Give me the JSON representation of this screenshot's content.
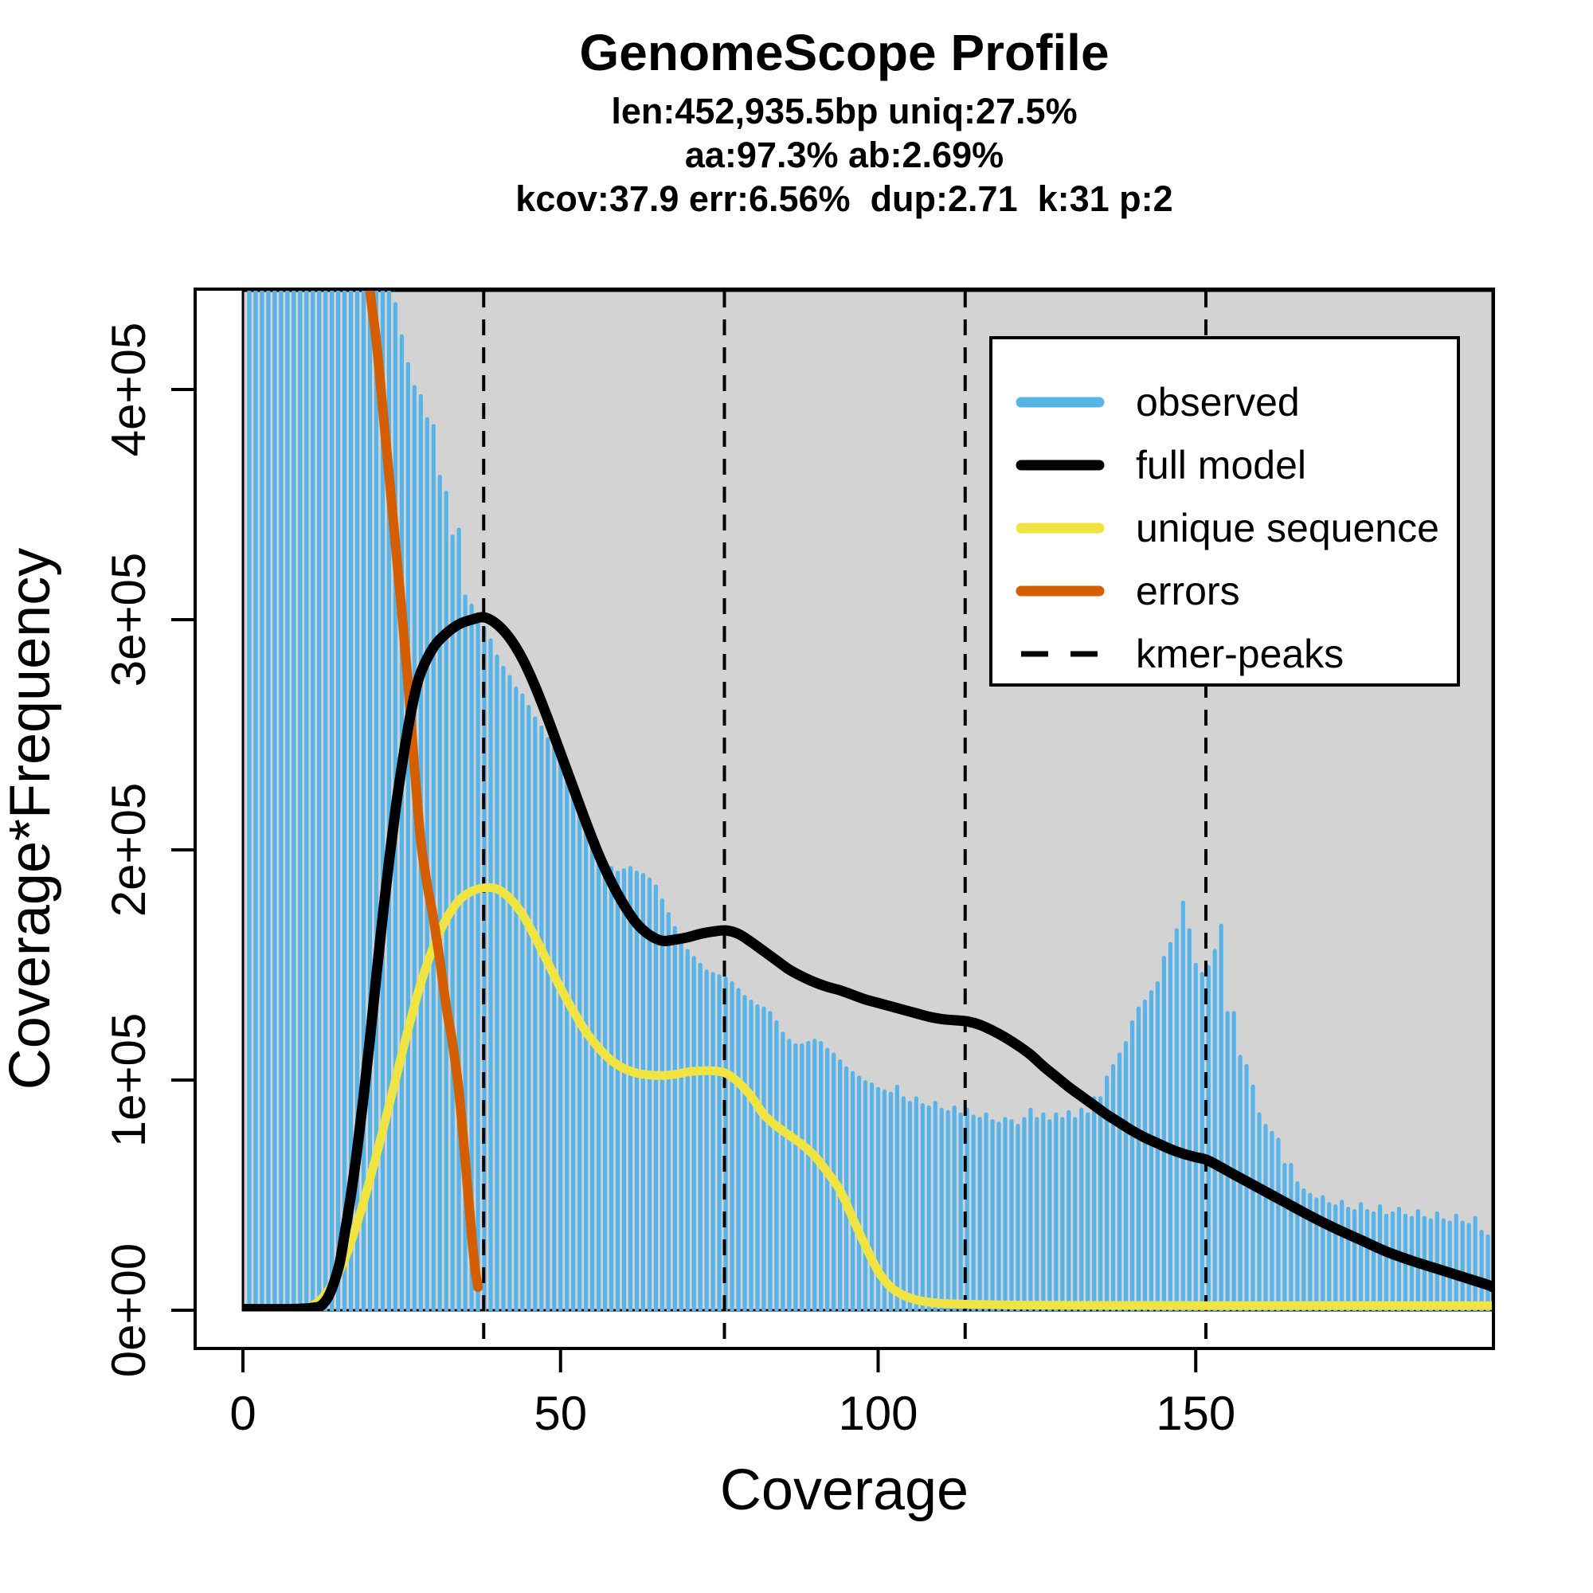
{
  "chart_data": {
    "type": "bar",
    "title": "GenomeScope Profile",
    "subtitle_lines": [
      "len:452,935.5bp uniq:27.5%",
      "aa:97.3% ab:2.69%",
      "kcov:37.9 err:6.56%  dup:2.71  k:31 p:2"
    ],
    "xlabel": "Coverage",
    "ylabel": "Coverage*Frequency",
    "xlim": [
      0,
      196.8
    ],
    "ylim_1e3": [
      0,
      443
    ],
    "grid": false,
    "legend_position": "top-right-inside",
    "x_ticks": [
      {
        "value": 0,
        "label": "0"
      },
      {
        "value": 50,
        "label": "50"
      },
      {
        "value": 100,
        "label": "100"
      },
      {
        "value": 150,
        "label": "150"
      }
    ],
    "y_ticks": [
      {
        "value_1e3": 0,
        "label": "0e+00"
      },
      {
        "value_1e3": 100,
        "label": "1e+05"
      },
      {
        "value_1e3": 200,
        "label": "2e+05"
      },
      {
        "value_1e3": 300,
        "label": "3e+05"
      },
      {
        "value_1e3": 400,
        "label": "4e+05"
      }
    ],
    "kmer_peaks": [
      37.9,
      75.8,
      113.7,
      151.6
    ],
    "colors": {
      "observed": "#56B4E9",
      "full_model": "#000000",
      "unique_sequence": "#F0E442",
      "errors": "#D55E00",
      "panel_background": "#D3D3D3",
      "figure_background": "#FFFFFF"
    },
    "legend": [
      {
        "label": "observed",
        "color": "#56B4E9",
        "dashed": false
      },
      {
        "label": "full model",
        "color": "#000000",
        "dashed": false
      },
      {
        "label": "unique sequence",
        "color": "#F0E442",
        "dashed": false
      },
      {
        "label": "errors",
        "color": "#D55E00",
        "dashed": false
      },
      {
        "label": "kmer-peaks",
        "color": "#000000",
        "dashed": true
      }
    ],
    "observed_histogram": {
      "note": "Coverage*Frequency values in units of 1e3, for coverage 1..196; 500 = bar clipped at top of panel",
      "x_start": 1,
      "values_1e3": [
        500,
        500,
        500,
        500,
        500,
        500,
        500,
        500,
        500,
        500,
        500,
        500,
        500,
        500,
        500,
        500,
        500,
        500,
        500,
        500,
        500,
        500,
        500,
        438,
        424,
        412,
        402,
        398,
        388,
        385,
        363,
        356,
        337,
        340,
        311,
        307,
        300,
        297,
        292,
        285,
        280,
        276,
        271,
        268,
        263,
        258,
        254,
        249,
        245,
        241,
        236,
        230,
        224,
        217,
        209,
        200,
        195,
        193,
        191,
        192,
        193,
        191,
        190,
        188,
        185,
        179,
        173,
        167,
        161,
        157,
        154,
        151,
        148,
        147,
        146,
        145,
        143,
        140,
        137,
        135,
        133,
        132,
        130,
        126,
        121,
        118,
        116,
        116,
        117,
        118,
        117,
        114,
        112,
        109,
        106,
        104,
        102,
        100,
        99,
        97,
        96,
        95,
        98,
        93,
        91,
        93,
        90,
        89,
        91,
        88,
        87,
        89,
        86,
        88,
        85,
        84,
        86,
        83,
        82,
        84,
        83,
        81,
        84,
        88,
        84,
        86,
        83,
        86,
        84,
        87,
        84,
        88,
        86,
        93,
        93,
        102,
        107,
        112,
        117,
        126,
        132,
        135,
        139,
        143,
        154,
        160,
        166,
        178,
        166,
        151,
        147,
        150,
        157,
        168,
        130,
        130,
        111,
        107,
        98,
        86,
        81,
        78,
        75,
        64,
        64,
        56,
        53,
        51,
        49,
        50,
        47,
        46,
        48,
        45,
        44,
        47,
        44,
        43,
        46,
        42,
        43,
        45,
        42,
        41,
        44,
        41,
        40,
        43,
        40,
        39,
        42,
        39,
        38,
        41,
        35,
        33
      ]
    },
    "series": [
      {
        "name": "full model",
        "color": "#000000",
        "width": 13,
        "points_cov_val1e3": [
          [
            0,
            0.5
          ],
          [
            10,
            0.8
          ],
          [
            13,
            4
          ],
          [
            15,
            18
          ],
          [
            16,
            33
          ],
          [
            17,
            50
          ],
          [
            18,
            70
          ],
          [
            19,
            93
          ],
          [
            20,
            118
          ],
          [
            21,
            145
          ],
          [
            22,
            171
          ],
          [
            23,
            195
          ],
          [
            24,
            217
          ],
          [
            25,
            236
          ],
          [
            26,
            253
          ],
          [
            27,
            267
          ],
          [
            28,
            277
          ],
          [
            30,
            288
          ],
          [
            32,
            294
          ],
          [
            34,
            298
          ],
          [
            36,
            300
          ],
          [
            38,
            301
          ],
          [
            40,
            298
          ],
          [
            42,
            292
          ],
          [
            44,
            283
          ],
          [
            46,
            271
          ],
          [
            48,
            257
          ],
          [
            50,
            242
          ],
          [
            52,
            227
          ],
          [
            54,
            212
          ],
          [
            56,
            198
          ],
          [
            58,
            186
          ],
          [
            60,
            176
          ],
          [
            62,
            168
          ],
          [
            64,
            163
          ],
          [
            66,
            160.5
          ],
          [
            68,
            161
          ],
          [
            70,
            162
          ],
          [
            72,
            163.5
          ],
          [
            74,
            164.5
          ],
          [
            76,
            165
          ],
          [
            78,
            163.5
          ],
          [
            80,
            160
          ],
          [
            82,
            156
          ],
          [
            84,
            152
          ],
          [
            86,
            148
          ],
          [
            88,
            145
          ],
          [
            90,
            142.5
          ],
          [
            92,
            140.5
          ],
          [
            94,
            139
          ],
          [
            96,
            137
          ],
          [
            98,
            135
          ],
          [
            100,
            133.5
          ],
          [
            102,
            132
          ],
          [
            104,
            130.5
          ],
          [
            106,
            129
          ],
          [
            108,
            127.5
          ],
          [
            110,
            126.5
          ],
          [
            112,
            126
          ],
          [
            114,
            125.5
          ],
          [
            116,
            124
          ],
          [
            118,
            121.5
          ],
          [
            120,
            118.5
          ],
          [
            122,
            115
          ],
          [
            124,
            111
          ],
          [
            126,
            106
          ],
          [
            128,
            101.5
          ],
          [
            130,
            97
          ],
          [
            132,
            93
          ],
          [
            134,
            89
          ],
          [
            136,
            85
          ],
          [
            138,
            81.5
          ],
          [
            140,
            78
          ],
          [
            142,
            75
          ],
          [
            144,
            72.5
          ],
          [
            146,
            70
          ],
          [
            148,
            68
          ],
          [
            150,
            66.5
          ],
          [
            152,
            65
          ],
          [
            156,
            59
          ],
          [
            160,
            53
          ],
          [
            164,
            47
          ],
          [
            168,
            41
          ],
          [
            172,
            35.5
          ],
          [
            176,
            30.5
          ],
          [
            180,
            25.5
          ],
          [
            184,
            21.5
          ],
          [
            188,
            18
          ],
          [
            192,
            14.5
          ],
          [
            196,
            11
          ],
          [
            196.8,
            10
          ]
        ]
      },
      {
        "name": "unique sequence",
        "color": "#F0E442",
        "width": 11,
        "points_cov_val1e3": [
          [
            8,
            0.3
          ],
          [
            10,
            1
          ],
          [
            12,
            4
          ],
          [
            14,
            11
          ],
          [
            16,
            22
          ],
          [
            18,
            38
          ],
          [
            20,
            57
          ],
          [
            22,
            78
          ],
          [
            24,
            100
          ],
          [
            26,
            122
          ],
          [
            28,
            142
          ],
          [
            30,
            158
          ],
          [
            32,
            170
          ],
          [
            34,
            178
          ],
          [
            36,
            182
          ],
          [
            38,
            183.5
          ],
          [
            40,
            183
          ],
          [
            42,
            179
          ],
          [
            44,
            172
          ],
          [
            46,
            162
          ],
          [
            48,
            151
          ],
          [
            50,
            140
          ],
          [
            52,
            130
          ],
          [
            54,
            121
          ],
          [
            56,
            114
          ],
          [
            58,
            108.5
          ],
          [
            60,
            105
          ],
          [
            62,
            103
          ],
          [
            64,
            102.2
          ],
          [
            66,
            102
          ],
          [
            68,
            102.5
          ],
          [
            70,
            103.5
          ],
          [
            72,
            104
          ],
          [
            74,
            104
          ],
          [
            76,
            103
          ],
          [
            78,
            99
          ],
          [
            80,
            93
          ],
          [
            82,
            85
          ],
          [
            84,
            80
          ],
          [
            86,
            76
          ],
          [
            88,
            72
          ],
          [
            90,
            67
          ],
          [
            92,
            60
          ],
          [
            94,
            52
          ],
          [
            96,
            40
          ],
          [
            98,
            28
          ],
          [
            100,
            17
          ],
          [
            102,
            10
          ],
          [
            104,
            6.5
          ],
          [
            106,
            4.5
          ],
          [
            108,
            3.5
          ],
          [
            110,
            3
          ],
          [
            114,
            2.6
          ],
          [
            120,
            2.3
          ],
          [
            130,
            2.1
          ],
          [
            150,
            2
          ],
          [
            180,
            2
          ],
          [
            196.8,
            2
          ]
        ]
      },
      {
        "name": "errors",
        "color": "#D55E00",
        "width": 12,
        "points_cov_val1e3": [
          [
            19.5,
            465
          ],
          [
            20,
            443
          ],
          [
            21,
            421
          ],
          [
            22,
            392
          ],
          [
            23,
            363
          ],
          [
            24,
            333
          ],
          [
            25,
            304
          ],
          [
            26,
            272
          ],
          [
            27,
            236
          ],
          [
            28,
            204
          ],
          [
            29,
            185
          ],
          [
            30,
            170
          ],
          [
            31,
            152
          ],
          [
            32,
            132
          ],
          [
            33,
            116
          ],
          [
            34,
            95
          ],
          [
            35,
            65
          ],
          [
            36,
            33
          ],
          [
            36.6,
            17
          ],
          [
            37,
            10
          ]
        ]
      }
    ]
  }
}
